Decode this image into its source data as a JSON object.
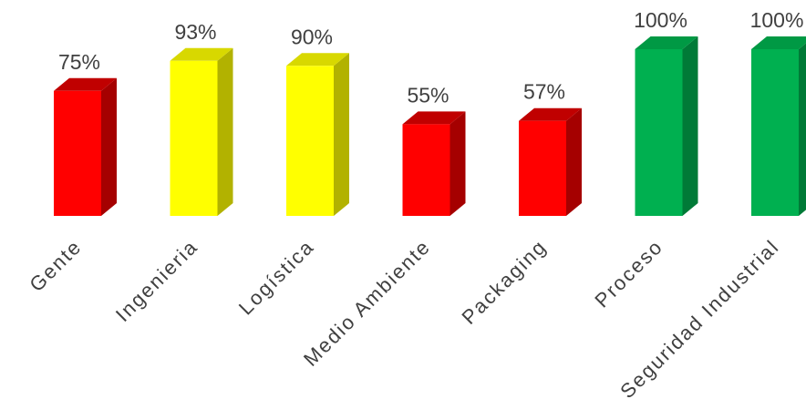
{
  "chart_data": {
    "type": "bar",
    "categories": [
      "Gente",
      "Ingenieria",
      "Logística",
      "Medio Ambiente",
      "Packaging",
      "Proceso",
      "Seguridad Industrial"
    ],
    "values": [
      75,
      93,
      90,
      55,
      57,
      100,
      100
    ],
    "value_labels": [
      "75%",
      "93%",
      "90%",
      "55%",
      "57%",
      "100%",
      "100%"
    ],
    "bar_colors": [
      {
        "front": "#ff0000",
        "side": "#a50000",
        "top": "#c00000"
      },
      {
        "front": "#ffff00",
        "side": "#b2b200",
        "top": "#d8d800"
      },
      {
        "front": "#ffff00",
        "side": "#b2b200",
        "top": "#d8d800"
      },
      {
        "front": "#ff0000",
        "side": "#a50000",
        "top": "#c00000"
      },
      {
        "front": "#ff0000",
        "side": "#a50000",
        "top": "#c00000"
      },
      {
        "front": "#00b050",
        "side": "#007a37",
        "top": "#009944"
      },
      {
        "front": "#00b050",
        "side": "#007a37",
        "top": "#009944"
      }
    ],
    "title": "",
    "xlabel": "",
    "ylabel": "",
    "ylim": [
      0,
      100
    ],
    "grid": false,
    "legend": "none",
    "style": "3d-columns"
  }
}
